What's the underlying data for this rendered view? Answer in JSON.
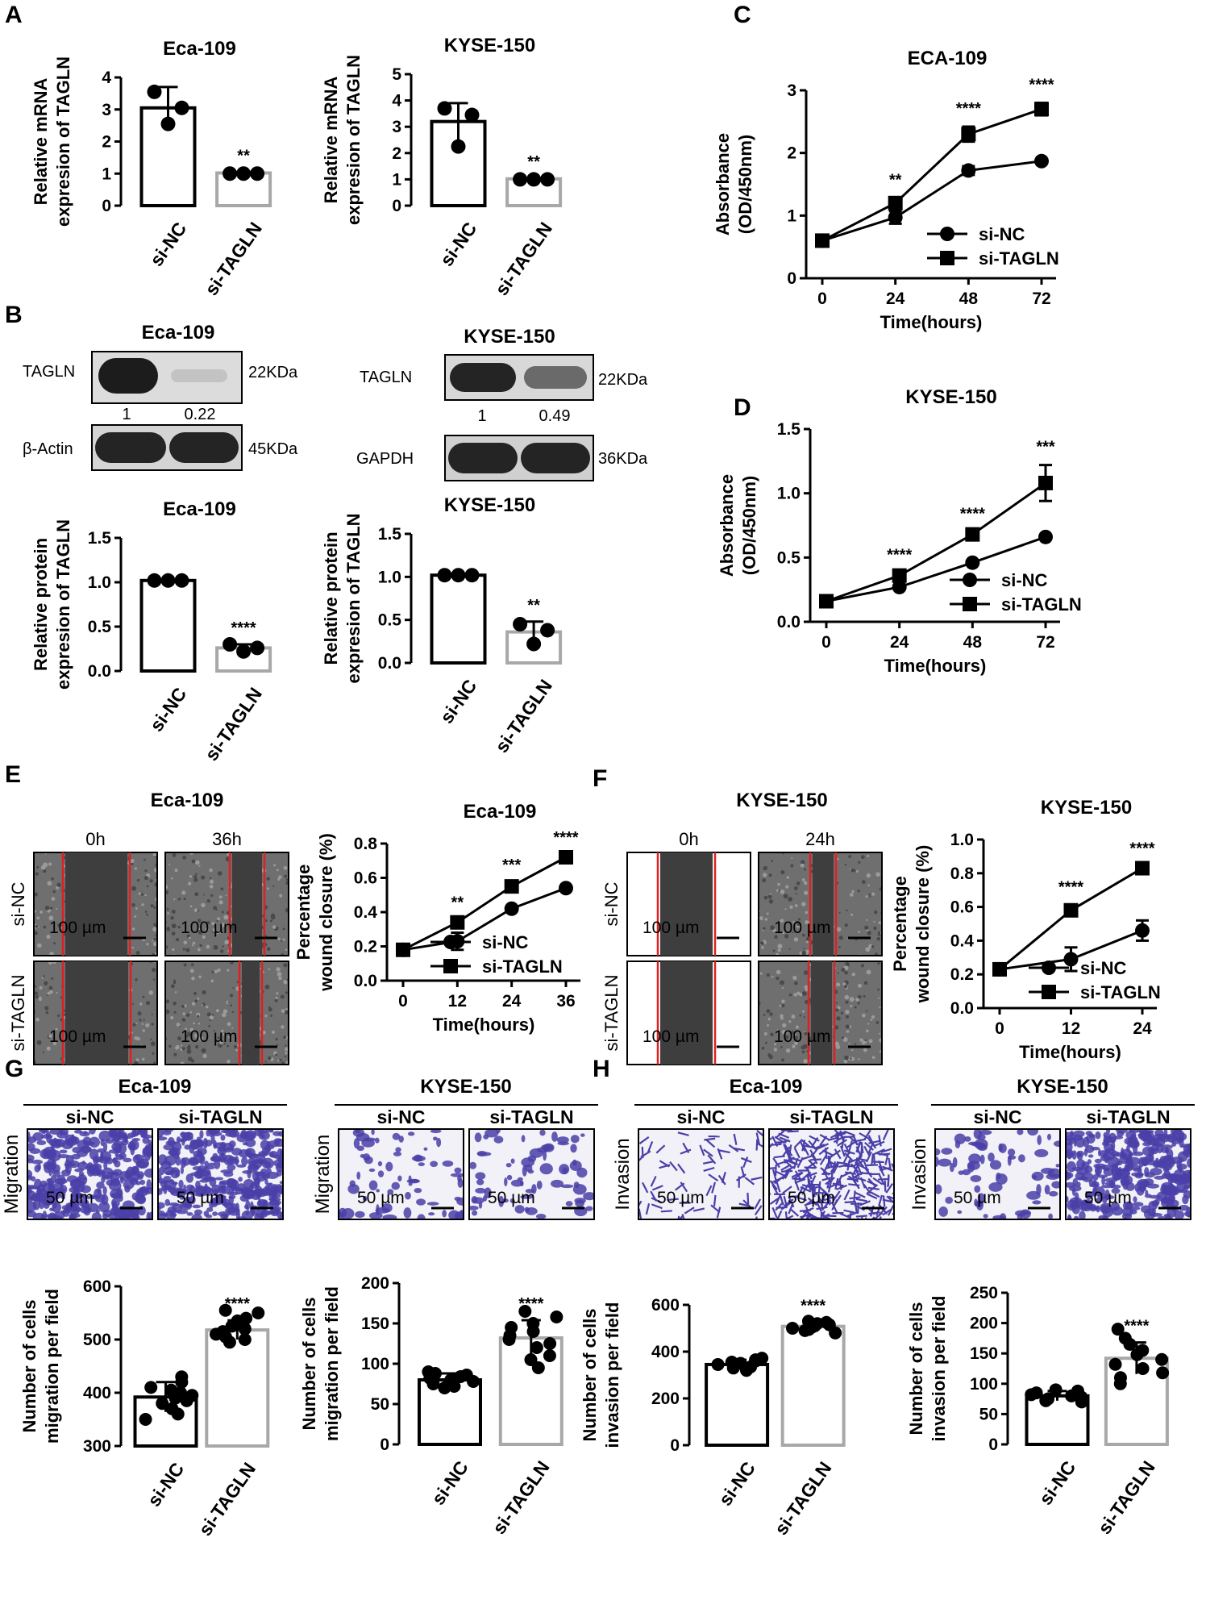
{
  "panel_labels": [
    "A",
    "B",
    "C",
    "D",
    "E",
    "F",
    "G",
    "H"
  ],
  "colors": {
    "ink": "#000000",
    "si_nc": "#000000",
    "si_tagln": "#a8a8a8",
    "cut": "#e02020",
    "stain": "#4a3fa8"
  },
  "western": {
    "eca": {
      "title": "Eca-109",
      "target": "TAGLN",
      "target_kda": "22KDa",
      "control": "β-Actin",
      "control_kda": "45KDa",
      "ratios": [
        "1",
        "0.22"
      ]
    },
    "kyse": {
      "title": "KYSE-150",
      "target": "TAGLN",
      "target_kda": "22KDa",
      "control": "GAPDH",
      "control_kda": "36KDa",
      "ratios": [
        "1",
        "0.49"
      ]
    }
  },
  "wound": {
    "e": {
      "title": "Eca-109",
      "times": [
        "0h",
        "36h"
      ],
      "rows": [
        "si-NC",
        "si-TAGLN"
      ],
      "scale": "100 µm"
    },
    "f": {
      "title": "KYSE-150",
      "times": [
        "0h",
        "24h"
      ],
      "rows": [
        "si-NC",
        "si-TAGLN"
      ],
      "scale": "100 µm"
    }
  },
  "transwell": {
    "g_eca": {
      "title": "Eca-109",
      "cols": [
        "si-NC",
        "si-TAGLN"
      ],
      "row": "Migration",
      "scale": "50 µm"
    },
    "g_kyse": {
      "title": "KYSE-150",
      "cols": [
        "si-NC",
        "si-TAGLN"
      ],
      "row": "Migration",
      "scale": "50 µm"
    },
    "h_eca": {
      "title": "Eca-109",
      "cols": [
        "si-NC",
        "si-TAGLN"
      ],
      "row": "Invasion",
      "scale": "50 µm"
    },
    "h_kyse": {
      "title": "KYSE-150",
      "cols": [
        "si-NC",
        "si-TAGLN"
      ],
      "row": "Invasion",
      "scale": "50 µm"
    }
  },
  "chart_data": [
    {
      "id": "a1",
      "type": "bar",
      "title": "Eca-109",
      "ylabel": [
        "Relative mRNA",
        "expresion of TAGLN"
      ],
      "categories": [
        "si-NC",
        "si-TAGLN"
      ],
      "values": [
        3.05,
        1.02
      ],
      "errors": [
        0.65,
        0.02
      ],
      "points": [
        [
          3.55,
          2.55,
          3.05
        ],
        [
          1.0,
          1.0,
          1.0
        ]
      ],
      "ylim": [
        0,
        4
      ],
      "yticks": [
        "0",
        "1",
        "2",
        "3",
        "4"
      ],
      "significance": "**"
    },
    {
      "id": "a2",
      "type": "bar",
      "title": "KYSE-150",
      "ylabel": [
        "Relative mRNA",
        "expresion of TAGLN"
      ],
      "categories": [
        "si-NC",
        "si-TAGLN"
      ],
      "values": [
        3.2,
        1.02
      ],
      "errors": [
        0.7,
        0.02
      ],
      "points": [
        [
          3.7,
          2.25,
          3.45
        ],
        [
          1.0,
          1.0,
          1.0
        ]
      ],
      "ylim": [
        0,
        5
      ],
      "yticks": [
        "0",
        "1",
        "2",
        "3",
        "4",
        "5"
      ],
      "significance": "**"
    },
    {
      "id": "b1",
      "type": "bar",
      "title": "Eca-109",
      "ylabel": [
        "Relative protein",
        "expresion of TAGLN"
      ],
      "categories": [
        "si-NC",
        "si-TAGLN"
      ],
      "values": [
        1.02,
        0.26
      ],
      "errors": [
        0.01,
        0.04
      ],
      "points": [
        [
          1.02,
          1.02,
          1.02
        ],
        [
          0.3,
          0.22,
          0.26
        ]
      ],
      "ylim": [
        0,
        1.5
      ],
      "yticks": [
        "0.0",
        "0.5",
        "1.0",
        "1.5"
      ],
      "significance": "****"
    },
    {
      "id": "b2",
      "type": "bar",
      "title": "KYSE-150",
      "ylabel": [
        "Relative protein",
        "expresion of TAGLN"
      ],
      "categories": [
        "si-NC",
        "si-TAGLN"
      ],
      "values": [
        1.02,
        0.36
      ],
      "errors": [
        0.01,
        0.12
      ],
      "points": [
        [
          1.02,
          1.02,
          1.02
        ],
        [
          0.45,
          0.22,
          0.38
        ]
      ],
      "ylim": [
        0,
        1.5
      ],
      "yticks": [
        "0.0",
        "0.5",
        "1.0",
        "1.5"
      ],
      "significance": "**"
    },
    {
      "id": "c",
      "type": "line",
      "title": "ECA-109",
      "xlabel": "Time(hours)",
      "ylabel": [
        "Absorbance",
        "(OD/450nm)"
      ],
      "x": [
        0,
        24,
        48,
        72
      ],
      "xticks": [
        "0",
        "24",
        "48",
        "72"
      ],
      "xlim": [
        0,
        72
      ],
      "ylim": [
        0,
        3
      ],
      "yticks": [
        "0",
        "1",
        "2",
        "3"
      ],
      "series": [
        {
          "name": "si-NC",
          "marker": "circle",
          "values": [
            0.6,
            0.97,
            1.72,
            1.87
          ],
          "errors": [
            0.0,
            0.1,
            0.07,
            0.03
          ]
        },
        {
          "name": "si-TAGLN",
          "marker": "square",
          "values": [
            0.6,
            1.2,
            2.3,
            2.7
          ],
          "errors": [
            0.0,
            0.08,
            0.12,
            0.1
          ]
        }
      ],
      "significance": [
        "",
        "**",
        "****",
        "****"
      ],
      "legend": "bottom-right"
    },
    {
      "id": "d",
      "type": "line",
      "title": "KYSE-150",
      "xlabel": "Time(hours)",
      "ylabel": [
        "Absorbance",
        "(OD/450nm)"
      ],
      "x": [
        0,
        24,
        48,
        72
      ],
      "xticks": [
        "0",
        "24",
        "48",
        "72"
      ],
      "xlim": [
        0,
        72
      ],
      "ylim": [
        0,
        1.5
      ],
      "yticks": [
        "0.0",
        "0.5",
        "1.0",
        "1.5"
      ],
      "series": [
        {
          "name": "si-NC",
          "marker": "circle",
          "values": [
            0.16,
            0.27,
            0.46,
            0.66
          ],
          "errors": [
            0.0,
            0.01,
            0.01,
            0.01
          ]
        },
        {
          "name": "si-TAGLN",
          "marker": "square",
          "values": [
            0.16,
            0.36,
            0.68,
            1.08
          ],
          "errors": [
            0.0,
            0.02,
            0.02,
            0.14
          ]
        }
      ],
      "significance": [
        "",
        "****",
        "****",
        "***"
      ],
      "legend": "bottom-right"
    },
    {
      "id": "e",
      "type": "line",
      "title": "Eca-109",
      "xlabel": "Time(hours)",
      "ylabel": [
        "Percentage",
        "wound closure (%)"
      ],
      "x": [
        0,
        12,
        24,
        36
      ],
      "xticks": [
        "0",
        "12",
        "24",
        "36"
      ],
      "xlim": [
        0,
        36
      ],
      "ylim": [
        0,
        0.8
      ],
      "yticks": [
        "0.0",
        "0.2",
        "0.4",
        "0.6",
        "0.8"
      ],
      "series": [
        {
          "name": "si-NC",
          "marker": "circle",
          "values": [
            0.18,
            0.23,
            0.42,
            0.54
          ],
          "errors": [
            0.0,
            0.05,
            0.01,
            0.01
          ]
        },
        {
          "name": "si-TAGLN",
          "marker": "square",
          "values": [
            0.18,
            0.34,
            0.55,
            0.72
          ],
          "errors": [
            0.0,
            0.01,
            0.02,
            0.01
          ]
        }
      ],
      "significance": [
        "",
        "**",
        "***",
        "****"
      ],
      "legend": "bottom-right"
    },
    {
      "id": "f",
      "type": "line",
      "title": "KYSE-150",
      "xlabel": "Time(hours)",
      "ylabel": [
        "Percentage",
        "wound closure (%)"
      ],
      "x": [
        0,
        12,
        24
      ],
      "xticks": [
        "0",
        "12",
        "24"
      ],
      "xlim": [
        0,
        24
      ],
      "ylim": [
        0,
        1.0
      ],
      "yticks": [
        "0.0",
        "0.2",
        "0.4",
        "0.6",
        "0.8",
        "1.0"
      ],
      "series": [
        {
          "name": "si-NC",
          "marker": "circle",
          "values": [
            0.23,
            0.29,
            0.46
          ],
          "errors": [
            0.0,
            0.07,
            0.06
          ]
        },
        {
          "name": "si-TAGLN",
          "marker": "square",
          "values": [
            0.23,
            0.58,
            0.83
          ],
          "errors": [
            0.0,
            0.03,
            0.01
          ]
        }
      ],
      "significance": [
        "",
        "****",
        "****"
      ],
      "legend": "bottom-right"
    },
    {
      "id": "g1",
      "type": "bar",
      "title": "",
      "ylabel": [
        "Number of cells",
        "migration per field"
      ],
      "categories": [
        "si-NC",
        "si-TAGLN"
      ],
      "values": [
        392,
        518
      ],
      "errors": [
        28,
        18
      ],
      "points": [
        [
          350,
          360,
          370,
          380,
          385,
          390,
          395,
          400,
          405,
          410,
          420,
          430
        ],
        [
          495,
          500,
          505,
          510,
          515,
          520,
          525,
          530,
          535,
          540,
          550,
          555
        ]
      ],
      "ylim": [
        300,
        600
      ],
      "yticks": [
        "300",
        "400",
        "500",
        "600"
      ],
      "significance": "****"
    },
    {
      "id": "g2",
      "type": "bar",
      "title": "",
      "ylabel": [
        "Number of cells",
        "migration per field"
      ],
      "categories": [
        "si-NC",
        "si-TAGLN"
      ],
      "values": [
        80,
        132
      ],
      "errors": [
        8,
        22
      ],
      "points": [
        [
          70,
          72,
          75,
          78,
          80,
          82,
          84,
          86,
          88,
          90
        ],
        [
          95,
          105,
          110,
          120,
          125,
          130,
          135,
          140,
          145,
          150,
          158,
          165
        ]
      ],
      "ylim": [
        0,
        200
      ],
      "yticks": [
        "0",
        "50",
        "100",
        "150",
        "200"
      ],
      "significance": "****"
    },
    {
      "id": "h1",
      "type": "bar",
      "title": "",
      "ylabel": [
        "Number of cells",
        "invasion per field"
      ],
      "categories": [
        "si-NC",
        "si-TAGLN"
      ],
      "values": [
        345,
        508
      ],
      "errors": [
        20,
        18
      ],
      "points": [
        [
          320,
          330,
          335,
          340,
          345,
          350,
          355,
          360,
          365,
          372
        ],
        [
          480,
          490,
          495,
          500,
          505,
          510,
          515,
          520,
          525,
          530
        ]
      ],
      "ylim": [
        0,
        600
      ],
      "yticks": [
        "0",
        "200",
        "400",
        "600"
      ],
      "significance": "****"
    },
    {
      "id": "h2",
      "type": "bar",
      "title": "",
      "ylabel": [
        "Number of cells",
        "invasion per field"
      ],
      "categories": [
        "si-NC",
        "si-TAGLN"
      ],
      "values": [
        80,
        142
      ],
      "errors": [
        8,
        26
      ],
      "points": [
        [
          70,
          72,
          75,
          78,
          80,
          82,
          85,
          88,
          90
        ],
        [
          100,
          110,
          118,
          125,
          132,
          140,
          148,
          155,
          165,
          175,
          190
        ]
      ],
      "ylim": [
        0,
        250
      ],
      "yticks": [
        "0",
        "50",
        "100",
        "150",
        "200",
        "250"
      ],
      "significance": "****"
    }
  ]
}
